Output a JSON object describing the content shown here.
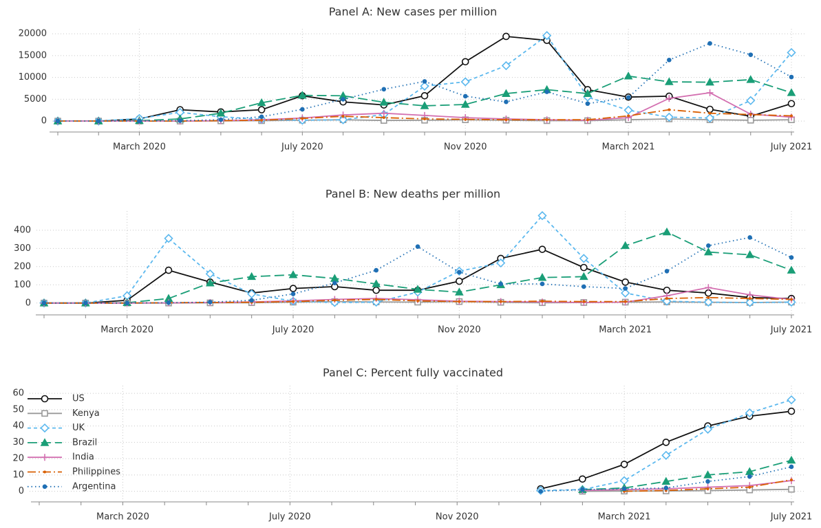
{
  "chart_data": [
    {
      "type": "line",
      "title": "Panel A: New cases per million",
      "categories": [
        null,
        null,
        "March 2020",
        null,
        null,
        null,
        "July 2020",
        null,
        null,
        null,
        "Nov 2020",
        null,
        null,
        null,
        "March 2021",
        null,
        null,
        null,
        "July 2021"
      ],
      "ylim": [
        -2500,
        20500
      ],
      "yticks": [
        0,
        5000,
        10000,
        15000,
        20000
      ],
      "grid": true,
      "series": [
        {
          "color": "#111111",
          "marker": "circle-open",
          "dash": "solid",
          "values": [
            0,
            0,
            500,
            2600,
            2100,
            2600,
            5800,
            4400,
            3700,
            5800,
            13600,
            19400,
            18500,
            7200,
            5500,
            5700,
            2700,
            1100,
            4000
          ]
        },
        {
          "color": "#999999",
          "marker": "square-open",
          "dash": "solid",
          "values": [
            0,
            0,
            0,
            0,
            50,
            100,
            200,
            300,
            150,
            200,
            300,
            200,
            100,
            100,
            300,
            500,
            300,
            200,
            300
          ]
        },
        {
          "color": "#5bb8ee",
          "marker": "diamond-open",
          "dash": "dash",
          "values": [
            0,
            0,
            600,
            2000,
            1000,
            400,
            200,
            300,
            1500,
            8000,
            9000,
            12700,
            19600,
            5500,
            2500,
            900,
            700,
            4700,
            15700
          ]
        },
        {
          "color": "#1a9e77",
          "marker": "triangle",
          "dash": "longdash",
          "values": [
            0,
            0,
            100,
            500,
            1800,
            4200,
            5900,
            5800,
            4300,
            3500,
            3800,
            6300,
            7200,
            6300,
            10300,
            9000,
            8900,
            9500,
            6500
          ]
        },
        {
          "color": "#d36fb0",
          "marker": "plus",
          "dash": "solid",
          "values": [
            0,
            0,
            0,
            0,
            100,
            300,
            700,
            1400,
            1800,
            1300,
            800,
            500,
            300,
            200,
            800,
            5200,
            6500,
            1600,
            900
          ]
        },
        {
          "color": "#d95f02",
          "marker": "dot-small",
          "dash": "dashdot",
          "values": [
            0,
            0,
            0,
            0,
            100,
            200,
            600,
            1100,
            800,
            500,
            400,
            300,
            300,
            300,
            1200,
            2600,
            1800,
            1500,
            1200
          ]
        },
        {
          "color": "#1f6fb4",
          "marker": "dot",
          "dash": "dot",
          "values": [
            0,
            0,
            0,
            100,
            300,
            1000,
            2700,
            5000,
            7300,
            9100,
            5700,
            4400,
            6700,
            4000,
            5400,
            14000,
            17800,
            15200,
            10100
          ]
        }
      ]
    },
    {
      "type": "line",
      "title": "Panel B: New deaths per million",
      "categories": [
        null,
        null,
        "March 2020",
        null,
        null,
        null,
        "July 2020",
        null,
        null,
        null,
        "Nov 2020",
        null,
        null,
        null,
        "March 2021",
        null,
        null,
        null,
        "July 2021"
      ],
      "ylim": [
        -65,
        490
      ],
      "yticks": [
        0,
        100,
        200,
        300,
        400
      ],
      "grid": true,
      "series": [
        {
          "color": "#111111",
          "marker": "circle-open",
          "dash": "solid",
          "values": [
            0,
            0,
            15,
            180,
            115,
            55,
            80,
            90,
            70,
            70,
            120,
            245,
            295,
            195,
            115,
            70,
            55,
            30,
            25
          ]
        },
        {
          "color": "#999999",
          "marker": "square-open",
          "dash": "solid",
          "values": [
            0,
            0,
            0,
            0,
            1,
            2,
            5,
            8,
            6,
            5,
            8,
            4,
            2,
            3,
            5,
            6,
            4,
            3,
            5
          ]
        },
        {
          "color": "#5bb8ee",
          "marker": "diamond-open",
          "dash": "dash",
          "values": [
            0,
            0,
            40,
            355,
            160,
            50,
            10,
            3,
            5,
            60,
            175,
            220,
            480,
            245,
            55,
            10,
            5,
            3,
            5
          ]
        },
        {
          "color": "#1a9e77",
          "marker": "triangle",
          "dash": "longdash",
          "values": [
            0,
            0,
            2,
            25,
            110,
            145,
            155,
            135,
            105,
            75,
            60,
            100,
            140,
            145,
            315,
            390,
            280,
            265,
            180
          ]
        },
        {
          "color": "#d36fb0",
          "marker": "plus",
          "dash": "solid",
          "values": [
            0,
            0,
            0,
            1,
            3,
            6,
            12,
            20,
            25,
            18,
            10,
            8,
            6,
            3,
            5,
            40,
            85,
            45,
            20
          ]
        },
        {
          "color": "#d95f02",
          "marker": "dot-small",
          "dash": "dashdot",
          "values": [
            0,
            0,
            0,
            2,
            3,
            4,
            8,
            15,
            20,
            12,
            8,
            8,
            10,
            8,
            8,
            25,
            30,
            25,
            20
          ]
        },
        {
          "color": "#1f6fb4",
          "marker": "dot",
          "dash": "dot",
          "values": [
            0,
            0,
            0,
            2,
            5,
            15,
            50,
            110,
            180,
            310,
            170,
            105,
            105,
            90,
            80,
            175,
            315,
            360,
            250
          ]
        }
      ]
    },
    {
      "type": "line",
      "title": "Panel C: Percent fully vaccinated",
      "categories": [
        null,
        null,
        "March 2020",
        null,
        null,
        null,
        "July 2020",
        null,
        null,
        null,
        "Nov 2020",
        null,
        null,
        null,
        "March 2021",
        null,
        null,
        null,
        "July 2021"
      ],
      "ylim": [
        -6.5,
        63
      ],
      "yticks": [
        0,
        10,
        20,
        30,
        40,
        50,
        60
      ],
      "grid": true,
      "legend": "upper left",
      "series": [
        {
          "name": "US",
          "color": "#111111",
          "marker": "circle-open",
          "dash": "solid",
          "values": [
            null,
            null,
            null,
            null,
            null,
            null,
            null,
            null,
            null,
            null,
            null,
            null,
            1.5,
            7.5,
            16.5,
            30,
            40,
            46,
            49
          ]
        },
        {
          "name": "Kenya",
          "color": "#999999",
          "marker": "square-open",
          "dash": "solid",
          "values": [
            null,
            null,
            null,
            null,
            null,
            null,
            null,
            null,
            null,
            null,
            null,
            null,
            null,
            0,
            0.1,
            0.2,
            0.4,
            0.8,
            1.2
          ]
        },
        {
          "name": "UK",
          "color": "#5bb8ee",
          "marker": "diamond-open",
          "dash": "dash",
          "values": [
            null,
            null,
            null,
            null,
            null,
            null,
            null,
            null,
            null,
            null,
            null,
            null,
            0.5,
            1,
            6.5,
            22,
            38,
            48,
            56
          ]
        },
        {
          "name": "Brazil",
          "color": "#1a9e77",
          "marker": "triangle",
          "dash": "longdash",
          "values": [
            null,
            null,
            null,
            null,
            null,
            null,
            null,
            null,
            null,
            null,
            null,
            null,
            null,
            1,
            2,
            6,
            10,
            12,
            19
          ]
        },
        {
          "name": "India",
          "color": "#d36fb0",
          "marker": "plus",
          "dash": "solid",
          "values": [
            null,
            null,
            null,
            null,
            null,
            null,
            null,
            null,
            null,
            null,
            null,
            null,
            null,
            0.5,
            1,
            1.5,
            2.5,
            3.5,
            6.5
          ]
        },
        {
          "name": "Philippines",
          "color": "#d95f02",
          "marker": "dot-small",
          "dash": "dashdot",
          "values": [
            null,
            null,
            null,
            null,
            null,
            null,
            null,
            null,
            null,
            null,
            null,
            null,
            null,
            null,
            0,
            0.5,
            1.5,
            2.5,
            7
          ]
        },
        {
          "name": "Argentina",
          "color": "#1f6fb4",
          "marker": "dot",
          "dash": "dot",
          "values": [
            null,
            null,
            null,
            null,
            null,
            null,
            null,
            null,
            null,
            null,
            null,
            null,
            0,
            1,
            1.5,
            2,
            6,
            9,
            15
          ]
        }
      ]
    }
  ]
}
